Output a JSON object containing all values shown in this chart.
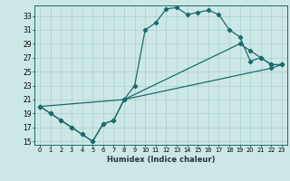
{
  "xlabel": "Humidex (Indice chaleur)",
  "bg_color": "#cce8e6",
  "line_color": "#1a6b6b",
  "grid_color": "#aacfcd",
  "xlim": [
    -0.5,
    23.5
  ],
  "ylim": [
    14.5,
    34.5
  ],
  "xticks": [
    0,
    1,
    2,
    3,
    4,
    5,
    6,
    7,
    8,
    9,
    10,
    11,
    12,
    13,
    14,
    15,
    16,
    17,
    18,
    19,
    20,
    21,
    22,
    23
  ],
  "yticks": [
    15,
    17,
    19,
    21,
    23,
    25,
    27,
    29,
    31,
    33
  ],
  "line1_x": [
    0,
    1,
    2,
    3,
    4,
    5,
    6,
    7,
    8,
    9,
    10,
    11,
    12,
    13,
    14,
    15,
    16,
    17,
    18,
    19,
    20,
    21,
    22,
    23
  ],
  "line1_y": [
    20,
    19,
    18,
    17,
    16,
    15,
    17.5,
    18,
    21,
    23,
    31,
    32,
    34,
    34.2,
    33.2,
    33.5,
    33.8,
    33.2,
    31,
    30,
    26.5,
    27,
    26,
    26
  ],
  "line2_x": [
    0,
    1,
    2,
    3,
    4,
    5,
    6,
    7,
    8,
    19,
    20,
    21,
    22,
    23
  ],
  "line2_y": [
    20,
    19,
    18,
    17,
    16,
    15,
    17.5,
    18,
    21,
    29,
    28,
    27,
    26,
    26
  ],
  "line3_x": [
    0,
    8,
    22,
    23
  ],
  "line3_y": [
    20,
    21,
    25.5,
    26
  ]
}
